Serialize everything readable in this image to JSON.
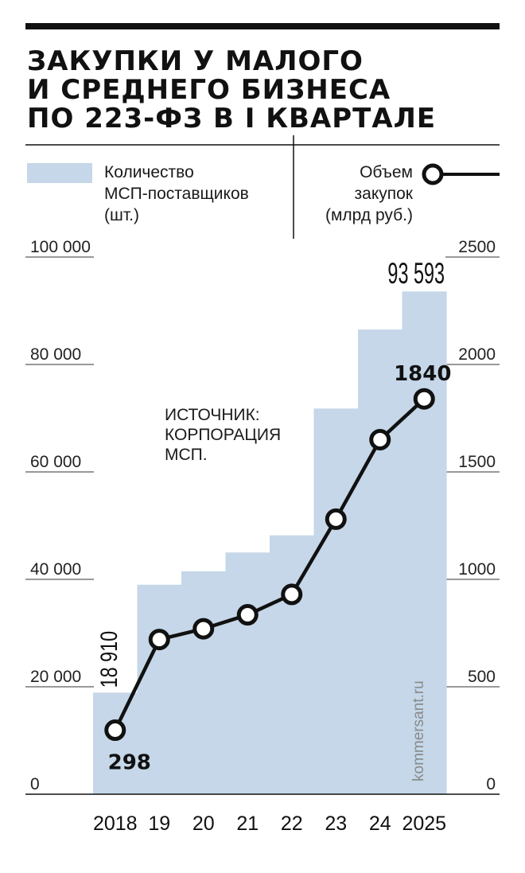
{
  "title_lines": [
    "ЗАКУПКИ У МАЛОГО",
    "И СРЕДНЕГО БИЗНЕСА",
    "ПО 223-ФЗ В I КВАРТАЛЕ"
  ],
  "legend": {
    "bars_lines": [
      "Количество",
      "МСП-поставщиков",
      "(шт.)"
    ],
    "line_lines": [
      "Объем",
      "закупок",
      "(млрд руб.)"
    ]
  },
  "source_lines": [
    "ИСТОЧНИК:",
    "КОРПОРАЦИЯ",
    "МСП."
  ],
  "watermark": "kommersant.ru",
  "colors": {
    "bars": "#c5d7e8",
    "line": "#111111",
    "marker_fill": "#ffffff"
  },
  "chart_data": {
    "type": "bar+line",
    "categories": [
      "2018",
      "19",
      "20",
      "21",
      "22",
      "23",
      "24",
      "2025"
    ],
    "bar_series": {
      "axis": "left",
      "values": [
        18910,
        39000,
        41500,
        45000,
        48200,
        71800,
        86500,
        93593
      ],
      "labels": {
        "0": "18 910",
        "7": "93 593"
      }
    },
    "line_series": {
      "axis": "right",
      "values": [
        298,
        720,
        770,
        835,
        930,
        1280,
        1650,
        1840
      ],
      "labels": {
        "0": "298",
        "7": "1840"
      }
    },
    "left_axis": {
      "range": [
        0,
        100000
      ],
      "ticks": [
        0,
        20000,
        40000,
        60000,
        80000,
        100000
      ],
      "tick_labels": [
        "0",
        "20 000",
        "40 000",
        "60 000",
        "80 000",
        "100 000"
      ]
    },
    "right_axis": {
      "range": [
        0,
        2500
      ],
      "ticks": [
        0,
        500,
        1000,
        1500,
        2000,
        2500
      ],
      "tick_labels": [
        "0",
        "500",
        "1000",
        "1500",
        "2000",
        "2500"
      ]
    },
    "grid": true
  }
}
